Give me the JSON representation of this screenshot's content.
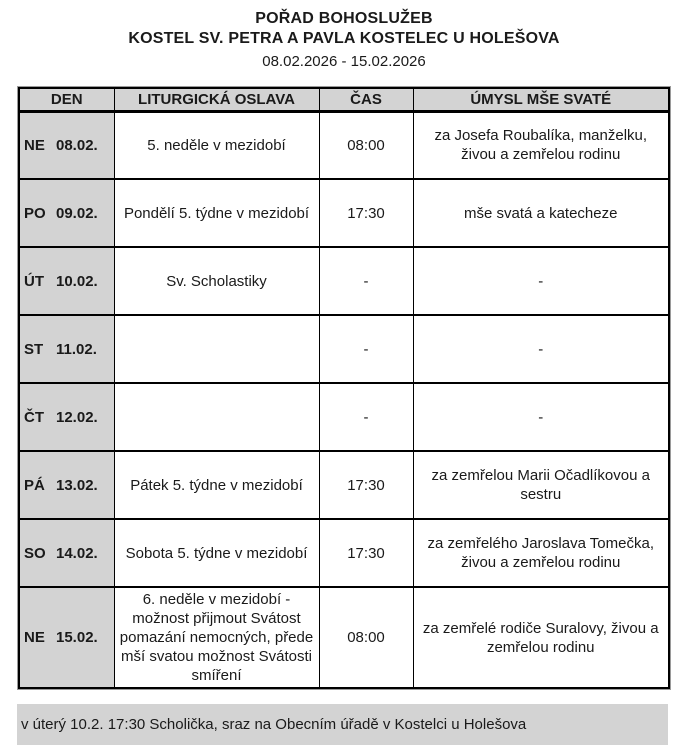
{
  "header": {
    "title": "POŘAD BOHOSLUŽEB",
    "subtitle": "KOSTEL SV. PETRA A PAVLA KOSTELEC U HOLEŠOVA",
    "date_range": "08.02.2026 - 15.02.2026"
  },
  "schedule_table": {
    "columns": {
      "day": "DEN",
      "celebration": "LITURGICKÁ OSLAVA",
      "time": "ČAS",
      "intention": "ÚMYSL MŠE SVATÉ"
    },
    "rows": [
      {
        "day": "NE",
        "date": "08.02.",
        "celebration": "5. neděle v mezidobí",
        "time": "08:00",
        "intention": "za Josefa Roubalíka, manželku, živou a zemřelou rodinu"
      },
      {
        "day": "PO",
        "date": "09.02.",
        "celebration": "Pondělí 5. týdne v mezidobí",
        "time": "17:30",
        "intention": "mše svatá a katecheze"
      },
      {
        "day": "ÚT",
        "date": "10.02.",
        "celebration": "Sv. Scholastiky",
        "time": "-",
        "intention": "-"
      },
      {
        "day": "ST",
        "date": "11.02.",
        "celebration": "",
        "time": "-",
        "intention": "-"
      },
      {
        "day": "ČT",
        "date": "12.02.",
        "celebration": "",
        "time": "-",
        "intention": "-"
      },
      {
        "day": "PÁ",
        "date": "13.02.",
        "celebration": "Pátek 5. týdne v mezidobí",
        "time": "17:30",
        "intention": "za zemřelou Marii Očadlíkovou a sestru"
      },
      {
        "day": "SO",
        "date": "14.02.",
        "celebration": "Sobota 5. týdne v mezidobí",
        "time": "17:30",
        "intention": "za zemřelého Jaroslava Tomečka, živou a zemřelou rodinu"
      },
      {
        "day": "NE",
        "date": "15.02.",
        "celebration": "6. neděle v mezidobí - možnost přijmout Svátost pomazání nemocných, přede mší svatou možnost Svátosti smíření",
        "time": "08:00",
        "intention": "za zemřelé rodiče Suralovy, živou a zemřelou rodinu"
      }
    ]
  },
  "footer": {
    "note": "v úterý 10.2. 17:30 Scholička, sraz na Obecním úřadě v Kostelci u Holešova"
  },
  "colors": {
    "header_bg": "#d3d3d3",
    "day_cell_bg": "#d3d3d3",
    "note_bg": "#d3d3d3",
    "border": "#000000"
  }
}
